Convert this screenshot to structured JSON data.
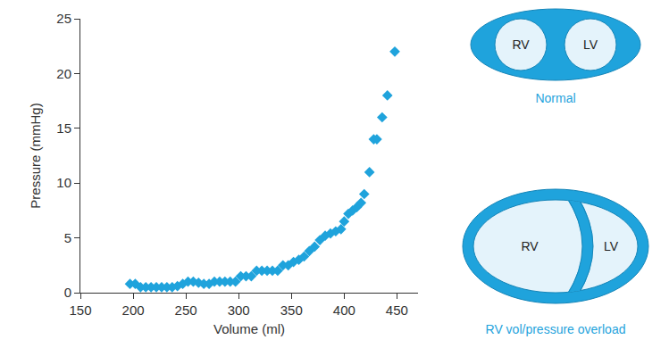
{
  "chart_data": {
    "type": "scatter",
    "x_label": "Volume (ml)",
    "y_label": "Pressure (mmHg)",
    "x": [
      197,
      202,
      207,
      212,
      217,
      222,
      227,
      232,
      237,
      242,
      247,
      252,
      257,
      262,
      267,
      272,
      277,
      282,
      287,
      292,
      297,
      302,
      307,
      312,
      317,
      322,
      327,
      332,
      337,
      342,
      347,
      352,
      357,
      362,
      367,
      372,
      377,
      382,
      387,
      392,
      397,
      400,
      404,
      408,
      412,
      416,
      419,
      424,
      428,
      431,
      436,
      441,
      448
    ],
    "values": [
      0.8,
      0.8,
      0.5,
      0.5,
      0.5,
      0.5,
      0.5,
      0.5,
      0.5,
      0.6,
      0.8,
      1.0,
      1.0,
      0.9,
      0.8,
      0.8,
      1.0,
      1.0,
      1.0,
      1.0,
      1.0,
      1.5,
      1.5,
      1.5,
      2.0,
      2.0,
      2.0,
      2.0,
      2.0,
      2.5,
      2.5,
      2.8,
      3.0,
      3.3,
      3.8,
      4.2,
      4.8,
      5.2,
      5.4,
      5.6,
      5.8,
      6.5,
      7.2,
      7.5,
      7.8,
      8.2,
      9.0,
      11.0,
      14.0,
      14.0,
      16.0,
      18.0,
      22.0
    ],
    "color": "#1fa3dc",
    "marker": "diamond",
    "xlim": [
      150,
      470
    ],
    "xticks": [
      150,
      200,
      250,
      300,
      350,
      400,
      450
    ],
    "ylim": [
      0,
      25
    ],
    "yticks": [
      0,
      5,
      10,
      15,
      20,
      25
    ],
    "grid": false
  },
  "diagram": {
    "panels": [
      {
        "label": "Normal",
        "chambers": [
          "RV",
          "LV"
        ]
      },
      {
        "label": "RV vol/pressure overload",
        "chambers": [
          "RV",
          "LV"
        ]
      }
    ]
  }
}
